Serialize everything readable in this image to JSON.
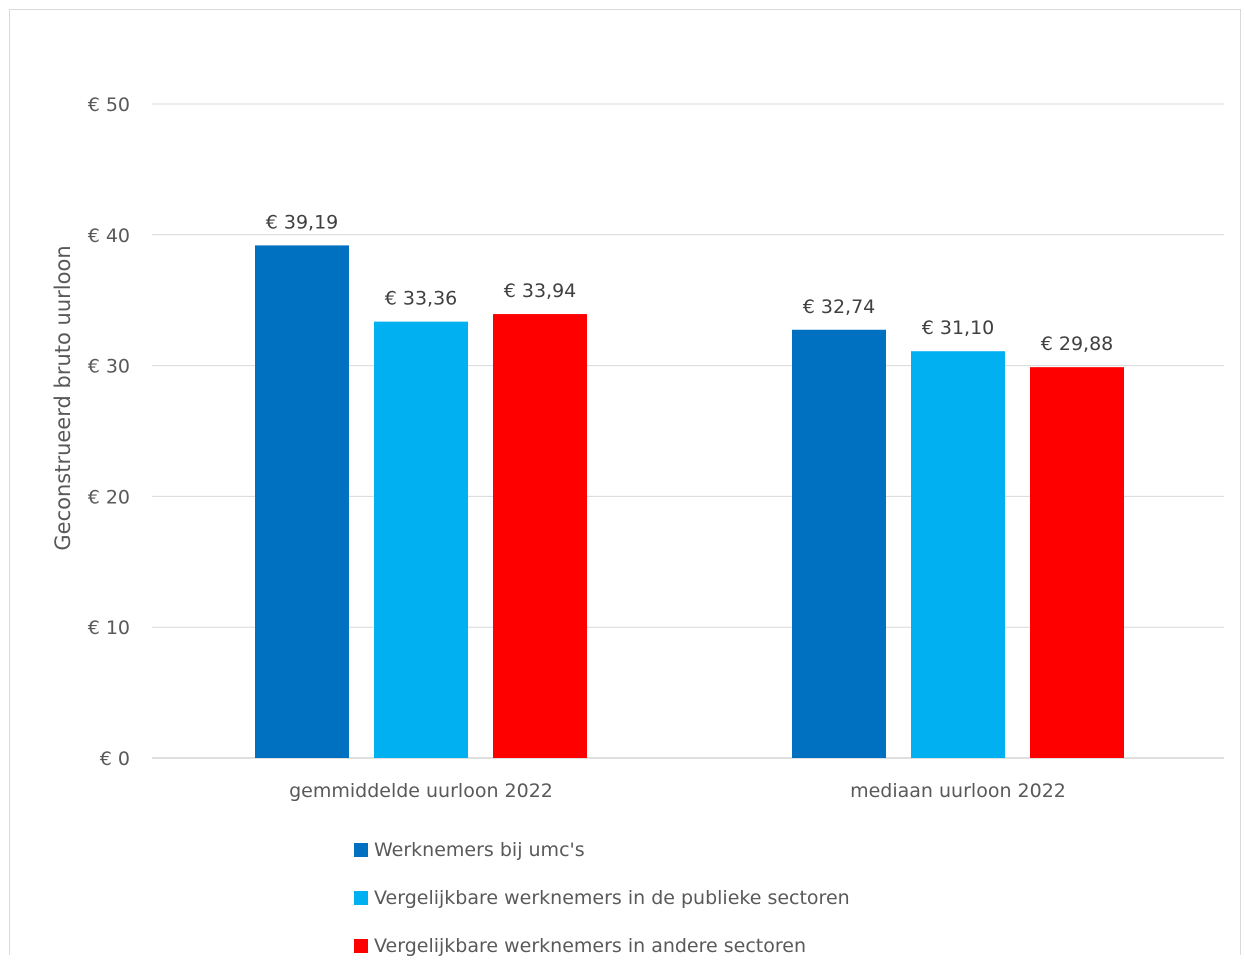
{
  "chart_data": {
    "type": "bar",
    "ylabel": "Geconstrueerd bruto uurloon",
    "xlabel": "",
    "ylim": [
      0,
      50
    ],
    "yticks": [
      0,
      10,
      20,
      30,
      40,
      50
    ],
    "ytick_labels": [
      "€ 0",
      "€ 10",
      "€ 20",
      "€ 30",
      "€ 40",
      "€ 50"
    ],
    "categories": [
      "gemmiddelde uurloon 2022",
      "mediaan uurloon 2022"
    ],
    "series": [
      {
        "name": "Werknemers bij umc's",
        "color": "#0070C0",
        "values": [
          39.19,
          32.74
        ],
        "labels": [
          "€ 39,19",
          "€ 32,74"
        ]
      },
      {
        "name": "Vergelijkbare werknemers in de publieke sectoren",
        "color": "#00B0F0",
        "values": [
          33.36,
          31.1
        ],
        "labels": [
          "€ 33,36",
          "€ 31,10"
        ]
      },
      {
        "name": "Vergelijkbare werknemers in andere sectoren",
        "color": "#FF0000",
        "values": [
          33.94,
          29.88
        ],
        "labels": [
          "€ 33,94",
          "€ 29,88"
        ]
      }
    ],
    "grid": true,
    "legend_position": "bottom"
  }
}
